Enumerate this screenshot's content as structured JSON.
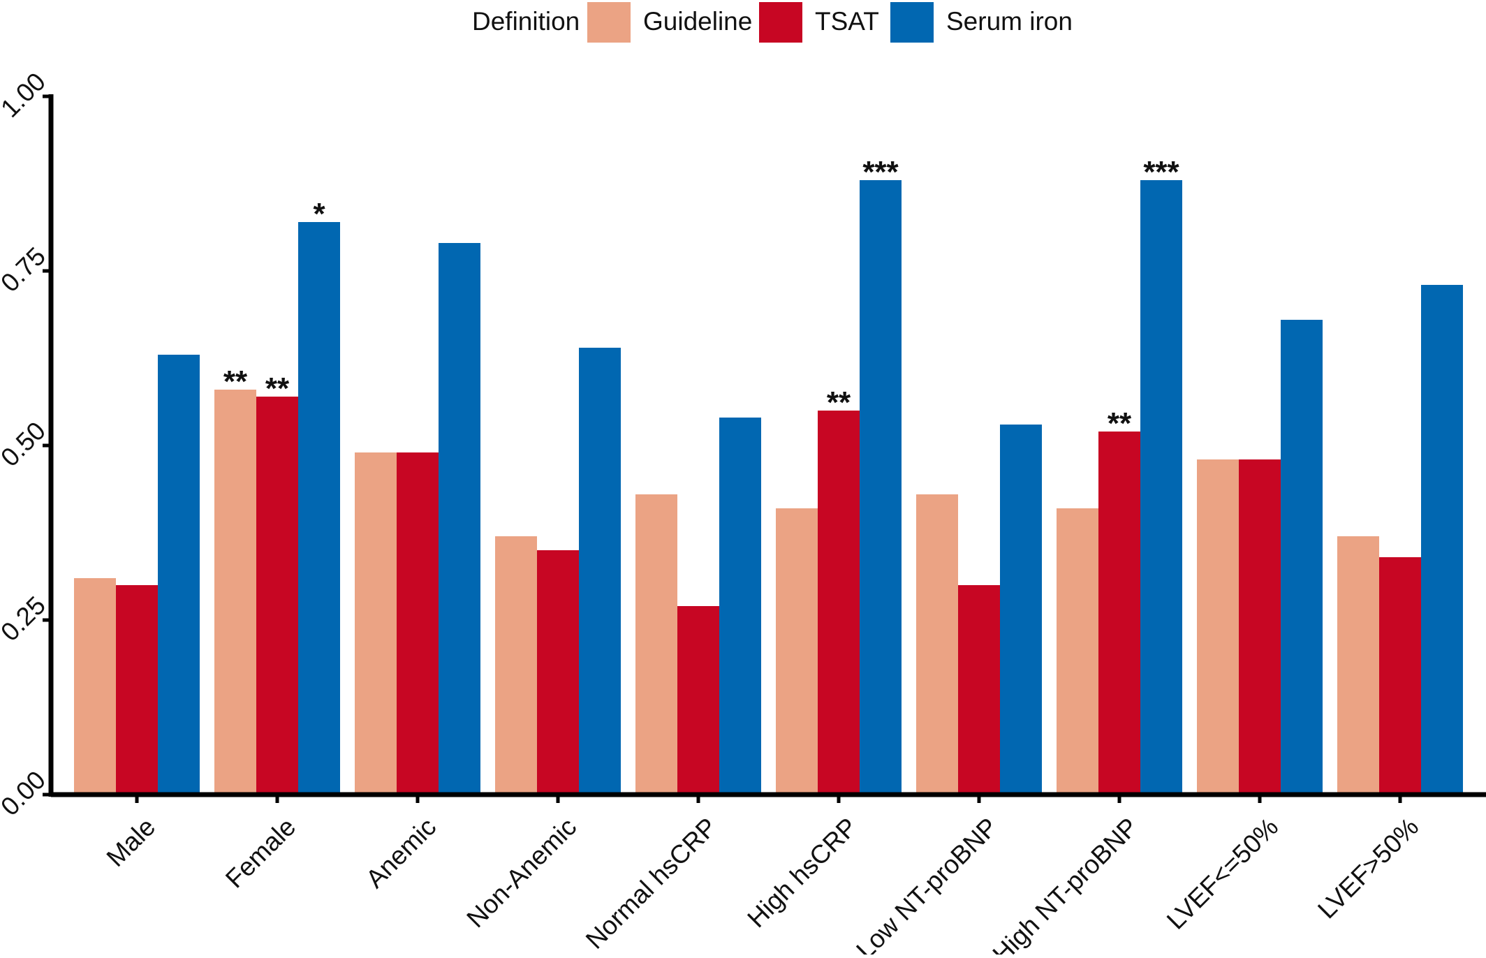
{
  "chart_data": {
    "type": "bar",
    "legend": {
      "title": "Definition",
      "placement": "top-center"
    },
    "categories": [
      "Male",
      "Female",
      "Anemic",
      "Non-Anemic",
      "Normal hsCRP",
      "High hsCRP",
      "Low NT-proBNP",
      "High NT-proBNP",
      "LVEF<=50%",
      "LVEF>50%"
    ],
    "series": [
      {
        "name": "Guideline",
        "color": "#EBA384",
        "values": [
          0.31,
          0.58,
          0.49,
          0.37,
          0.43,
          0.41,
          0.43,
          0.41,
          0.48,
          0.37
        ],
        "annotations": [
          "",
          "**",
          "",
          "",
          "",
          "",
          "",
          "",
          "",
          ""
        ]
      },
      {
        "name": "TSAT",
        "color": "#C70623",
        "values": [
          0.3,
          0.57,
          0.49,
          0.35,
          0.27,
          0.55,
          0.3,
          0.52,
          0.48,
          0.34
        ],
        "annotations": [
          "",
          "**",
          "",
          "",
          "",
          "**",
          "",
          "**",
          "",
          ""
        ]
      },
      {
        "name": "Serum iron",
        "color": "#0167B1",
        "values": [
          0.63,
          0.82,
          0.79,
          0.64,
          0.54,
          0.88,
          0.53,
          0.88,
          0.68,
          0.73
        ],
        "annotations": [
          "",
          "*",
          "",
          "",
          "",
          "***",
          "",
          "***",
          "",
          ""
        ]
      }
    ],
    "ylim": [
      0,
      1
    ],
    "yticks": [
      "0.00",
      "0.25",
      "0.50",
      "0.75",
      "1.00"
    ],
    "ytick_values": [
      0,
      0.25,
      0.5,
      0.75,
      1
    ],
    "xlabel": "",
    "ylabel": "",
    "grid": false
  }
}
